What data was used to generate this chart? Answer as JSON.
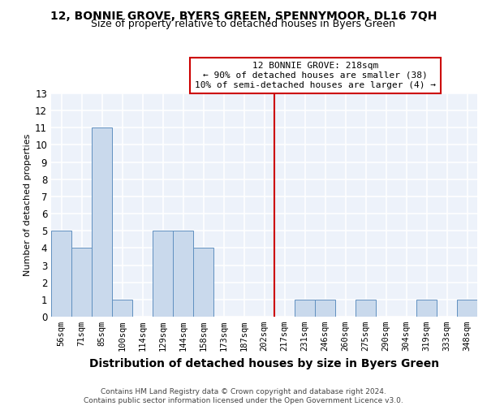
{
  "title": "12, BONNIE GROVE, BYERS GREEN, SPENNYMOOR, DL16 7QH",
  "subtitle": "Size of property relative to detached houses in Byers Green",
  "xlabel": "Distribution of detached houses by size in Byers Green",
  "ylabel": "Number of detached properties",
  "bar_labels": [
    "56sqm",
    "71sqm",
    "85sqm",
    "100sqm",
    "114sqm",
    "129sqm",
    "144sqm",
    "158sqm",
    "173sqm",
    "187sqm",
    "202sqm",
    "217sqm",
    "231sqm",
    "246sqm",
    "260sqm",
    "275sqm",
    "290sqm",
    "304sqm",
    "319sqm",
    "333sqm",
    "348sqm"
  ],
  "bar_values": [
    5,
    4,
    11,
    1,
    0,
    5,
    5,
    4,
    0,
    0,
    0,
    0,
    1,
    1,
    0,
    1,
    0,
    0,
    1,
    0,
    1
  ],
  "bar_color": "#c9d9ec",
  "bar_edge_color": "#6090c0",
  "vline_pos": 11,
  "vline_color": "#cc0000",
  "annotation_text": "12 BONNIE GROVE: 218sqm\n← 90% of detached houses are smaller (38)\n10% of semi-detached houses are larger (4) →",
  "annotation_box_color": "#cc0000",
  "ylim": [
    0,
    13
  ],
  "yticks": [
    0,
    1,
    2,
    3,
    4,
    5,
    6,
    7,
    8,
    9,
    10,
    11,
    12,
    13
  ],
  "footer_text": "Contains HM Land Registry data © Crown copyright and database right 2024.\nContains public sector information licensed under the Open Government Licence v3.0.",
  "bg_color": "#edf2fa",
  "grid_color": "#ffffff",
  "title_fontsize": 10,
  "subtitle_fontsize": 9,
  "xlabel_fontsize": 9,
  "ylabel_fontsize": 8,
  "tick_fontsize": 7.5,
  "annotation_fontsize": 8,
  "footer_fontsize": 6.5
}
